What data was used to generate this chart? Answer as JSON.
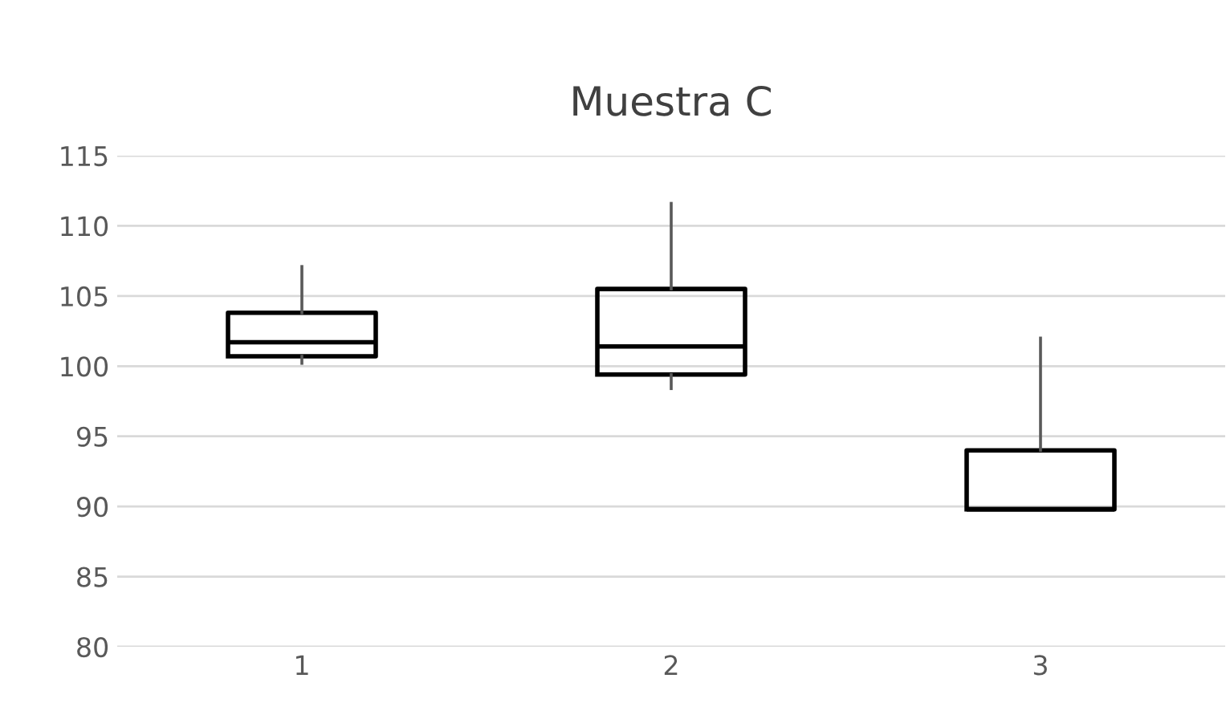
{
  "chart_data": {
    "type": "box",
    "title": "Muestra C",
    "categories": [
      "1",
      "2",
      "3"
    ],
    "boxes": [
      {
        "low": 100.2,
        "q1": 100.7,
        "median": 101.7,
        "q3": 103.8,
        "high": 107.1
      },
      {
        "low": 98.4,
        "q1": 99.4,
        "median": 101.4,
        "q3": 105.5,
        "high": 111.6
      },
      {
        "low": 89.8,
        "q1": 89.8,
        "median": 89.8,
        "q3": 94.0,
        "high": 102.0
      }
    ],
    "color": "#000000",
    "ylim": [
      80,
      115
    ],
    "yticks": [
      80,
      85,
      90,
      95,
      100,
      105,
      110,
      115
    ],
    "grid": "y"
  }
}
